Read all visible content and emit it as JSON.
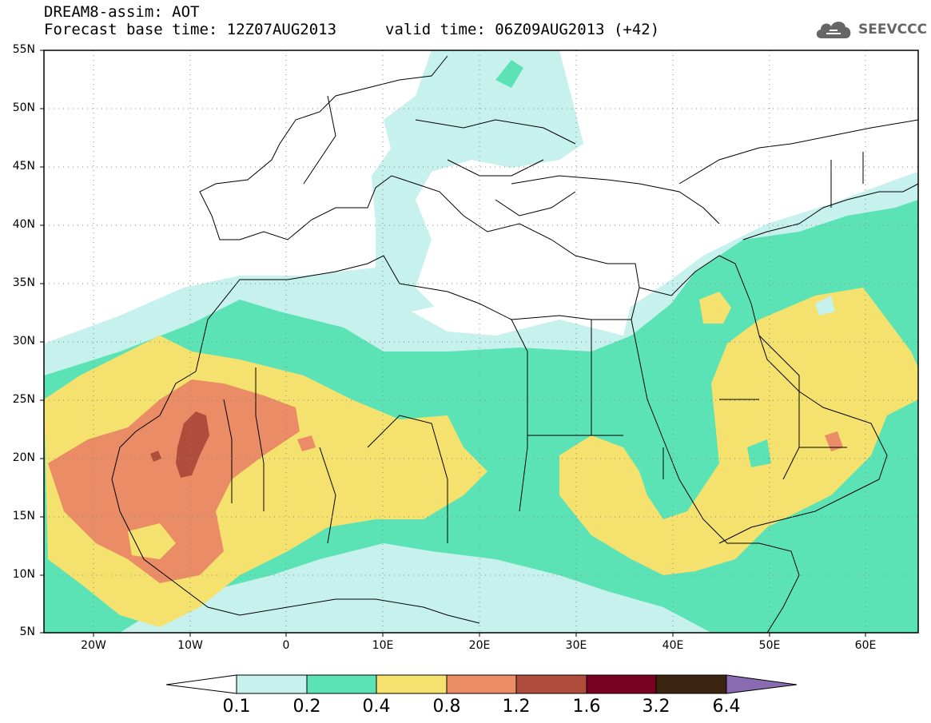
{
  "title": {
    "line1": "DREAM8-assim: AOT",
    "line2": "Forecast base time: 12Z07AUG2013",
    "valid": "valid time: 06Z09AUG2013 (+42)"
  },
  "logo": {
    "text": "SEEVCCC",
    "icon": "cloud-icon"
  },
  "map": {
    "lon_range": [
      -25,
      65
    ],
    "lat_range": [
      5,
      55
    ],
    "lat_labels": [
      "55N",
      "50N",
      "45N",
      "40N",
      "35N",
      "30N",
      "25N",
      "20N",
      "15N",
      "10N",
      "5N"
    ],
    "lat_values": [
      55,
      50,
      45,
      40,
      35,
      30,
      25,
      20,
      15,
      10,
      5
    ],
    "lon_labels": [
      "20W",
      "10W",
      "0",
      "10E",
      "20E",
      "30E",
      "40E",
      "50E",
      "60E"
    ],
    "lon_values": [
      -20,
      -10,
      0,
      10,
      20,
      30,
      40,
      50,
      60
    ],
    "grid": "dotted"
  },
  "colorbar": {
    "labels": [
      "0.1",
      "0.2",
      "0.4",
      "0.8",
      "1.2",
      "1.6",
      "3.2",
      "6.4"
    ],
    "colors": [
      "#c6f1ec",
      "#5ce3b5",
      "#f5e26e",
      "#ea8c66",
      "#b04c3c",
      "#780022",
      "#3a2410",
      "#8a6ab0"
    ],
    "low_extension_color": "#ffffff"
  }
}
